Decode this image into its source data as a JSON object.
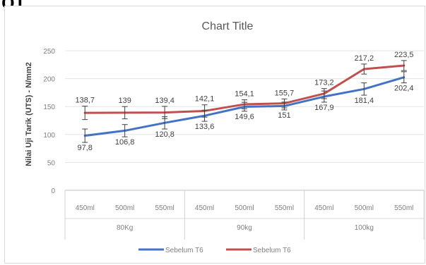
{
  "page_fragment_text": "OJ",
  "chart_data": {
    "type": "line",
    "title": "Chart Title",
    "ylabel": "Nilai Uji Tarik (UTS) - N/mm2",
    "xlabel": "",
    "ylim": [
      0,
      250
    ],
    "yticks": [
      0,
      50,
      100,
      150,
      200,
      250
    ],
    "grid": true,
    "legend_position": "bottom",
    "categories": [
      "450ml",
      "500ml",
      "550ml",
      "450ml",
      "500ml",
      "550ml",
      "450ml",
      "500ml",
      "550ml"
    ],
    "groups": [
      {
        "label": "80Kg",
        "span": 3
      },
      {
        "label": "90kg",
        "span": 3
      },
      {
        "label": "100kg",
        "span": 3
      }
    ],
    "error_bars": true,
    "series": [
      {
        "name": "Sebelum T6",
        "color": "#4472c4",
        "values": [
          97.8,
          106.8,
          120.8,
          133.6,
          149.6,
          151,
          167.9,
          181.4,
          202.4
        ],
        "labels": [
          "97,8",
          "106,8",
          "120,8",
          "133,6",
          "149,6",
          "151",
          "167,9",
          "181,4",
          "202,4"
        ],
        "errors": [
          12,
          11,
          11,
          10,
          8,
          7,
          10,
          11,
          10
        ]
      },
      {
        "name": "Sebelum T6",
        "color": "#c0504d",
        "values": [
          138.7,
          139,
          139.4,
          142.1,
          154.1,
          155.7,
          173.2,
          217.2,
          223.5
        ],
        "labels": [
          "138,7",
          "139",
          "139,4",
          "142,1",
          "154,1",
          "155,7",
          "173,2",
          "217,2",
          "223,5"
        ],
        "errors": [
          12,
          11,
          11,
          11,
          8,
          8,
          9,
          9,
          9
        ]
      }
    ]
  }
}
